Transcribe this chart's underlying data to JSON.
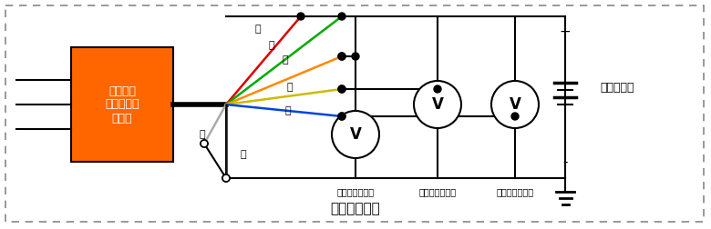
{
  "bg": "#ffffff",
  "sensor_color": "#FF6600",
  "sensor_text": "土壤水分\n温度电导率\n传感器",
  "wire_colors": [
    "#DD0000",
    "#00AA00",
    "#FF8800",
    "#CCBB00",
    "#0044DD",
    "#AAAAAA",
    "#111111"
  ],
  "wire_labels": [
    "红",
    "绿",
    "橙",
    "黄",
    "蓝",
    "白",
    "黑"
  ],
  "vm_texts": [
    "电导率信号输出",
    "温度信号输出，",
    "水分信号输出，"
  ],
  "dc_text": "直流电源，",
  "title_text": "接线示意图，",
  "plus_text": "+",
  "minus_text": "-"
}
